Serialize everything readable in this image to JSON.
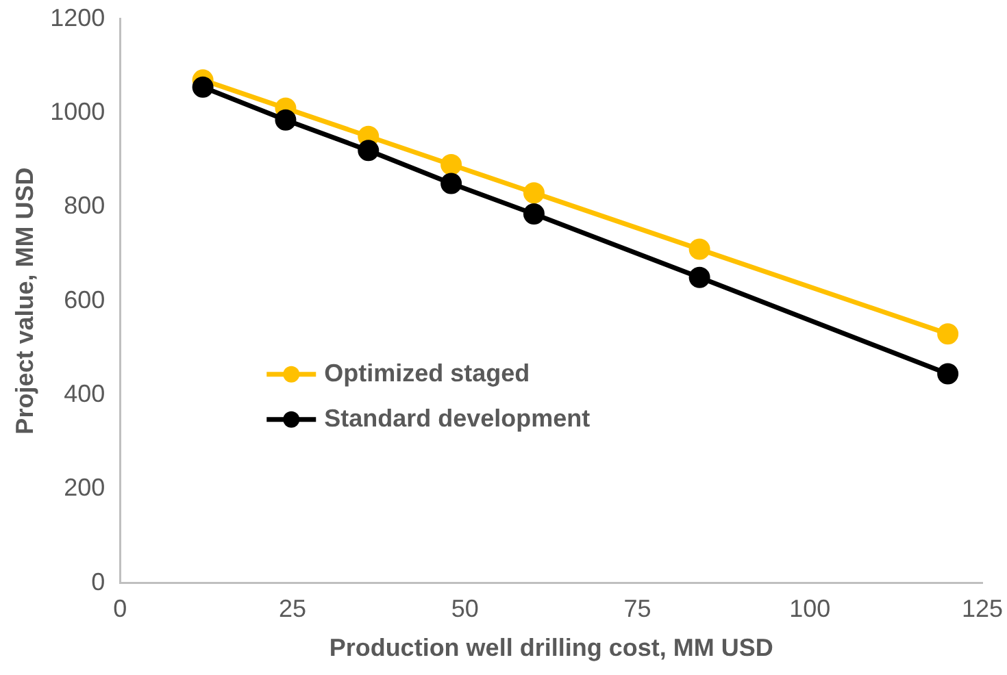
{
  "chart_data": {
    "type": "line",
    "xlabel": "Production well drilling cost, MM USD",
    "ylabel": "Project value, MM USD",
    "xlim": [
      0,
      125
    ],
    "xticks": [
      0,
      25,
      50,
      75,
      100,
      125
    ],
    "ylim": [
      0,
      1200
    ],
    "yticks": [
      0,
      200,
      400,
      600,
      800,
      1000,
      1200
    ],
    "grid": false,
    "legend": "left",
    "marker": "circle",
    "line_style": "solid",
    "series": [
      {
        "name": "Optimized staged",
        "color": "#ffc000",
        "x": [
          12,
          24,
          36,
          48,
          60,
          84,
          120
        ],
        "values": [
          1070,
          1010,
          950,
          890,
          830,
          710,
          530
        ]
      },
      {
        "name": "Standard development",
        "color": "#000000",
        "x": [
          12,
          24,
          36,
          48,
          60,
          84,
          120
        ],
        "values": [
          1055,
          985,
          920,
          850,
          785,
          650,
          445
        ]
      }
    ]
  }
}
